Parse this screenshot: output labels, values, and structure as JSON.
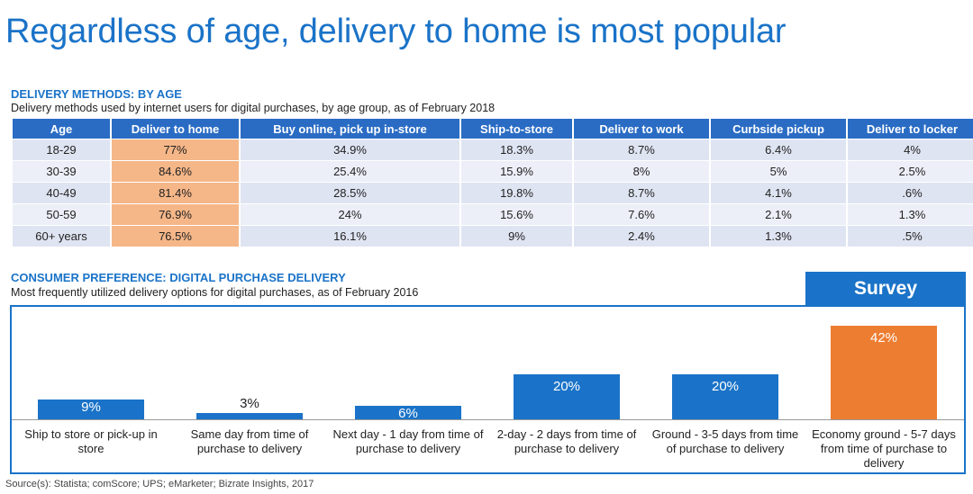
{
  "title": "Regardless of age, delivery to home is most popular",
  "table_section": {
    "heading": "DELIVERY METHODS: BY AGE",
    "subheading": "Delivery methods used by internet users for digital purchases, by age group, as of February 2018"
  },
  "chart_section": {
    "heading": "CONSUMER PREFERENCE: DIGITAL PURCHASE DELIVERY",
    "subheading": "Most frequently utilized delivery options for digital purchases, as of February 2016",
    "badge": "Survey"
  },
  "source": "Source(s): Statista; comScore; UPS; eMarketer; Bizrate Insights, 2017",
  "colors": {
    "accent": "#1a73c8",
    "highlight": "#f5b688",
    "bar": "#1a73c8",
    "bar_highlight": "#ed7d31"
  },
  "chart_data": [
    {
      "type": "table",
      "columns": [
        "Age",
        "Deliver to home",
        "Buy online, pick up in-store",
        "Ship-to-store",
        "Deliver to work",
        "Curbside pickup",
        "Deliver to locker"
      ],
      "rows": [
        [
          "18-29",
          "77%",
          "34.9%",
          "18.3%",
          "8.7%",
          "6.4%",
          "4%"
        ],
        [
          "30-39",
          "84.6%",
          "25.4%",
          "15.9%",
          "8%",
          "5%",
          "2.5%"
        ],
        [
          "40-49",
          "81.4%",
          "28.5%",
          "19.8%",
          "8.7%",
          "4.1%",
          ".6%"
        ],
        [
          "50-59",
          "76.9%",
          "24%",
          "15.6%",
          "7.6%",
          "2.1%",
          "1.3%"
        ],
        [
          "60+ years",
          "76.5%",
          "16.1%",
          "9%",
          "2.4%",
          "1.3%",
          ".5%"
        ]
      ],
      "highlight_column": 1
    },
    {
      "type": "bar",
      "categories": [
        "Ship to store or pick-up in store",
        "Same day from time of purchase to delivery",
        "Next day - 1 day from time of purchase to delivery",
        "2-day - 2 days from time of purchase to delivery",
        "Ground - 3-5 days from time of purchase to delivery",
        "Economy ground - 5-7 days from time of purchase to delivery"
      ],
      "values": [
        9,
        3,
        6,
        20,
        20,
        42
      ],
      "value_labels": [
        "9%",
        "3%",
        "6%",
        "20%",
        "20%",
        "42%"
      ],
      "highlight_index": 5,
      "ylim": [
        0,
        42
      ]
    }
  ]
}
